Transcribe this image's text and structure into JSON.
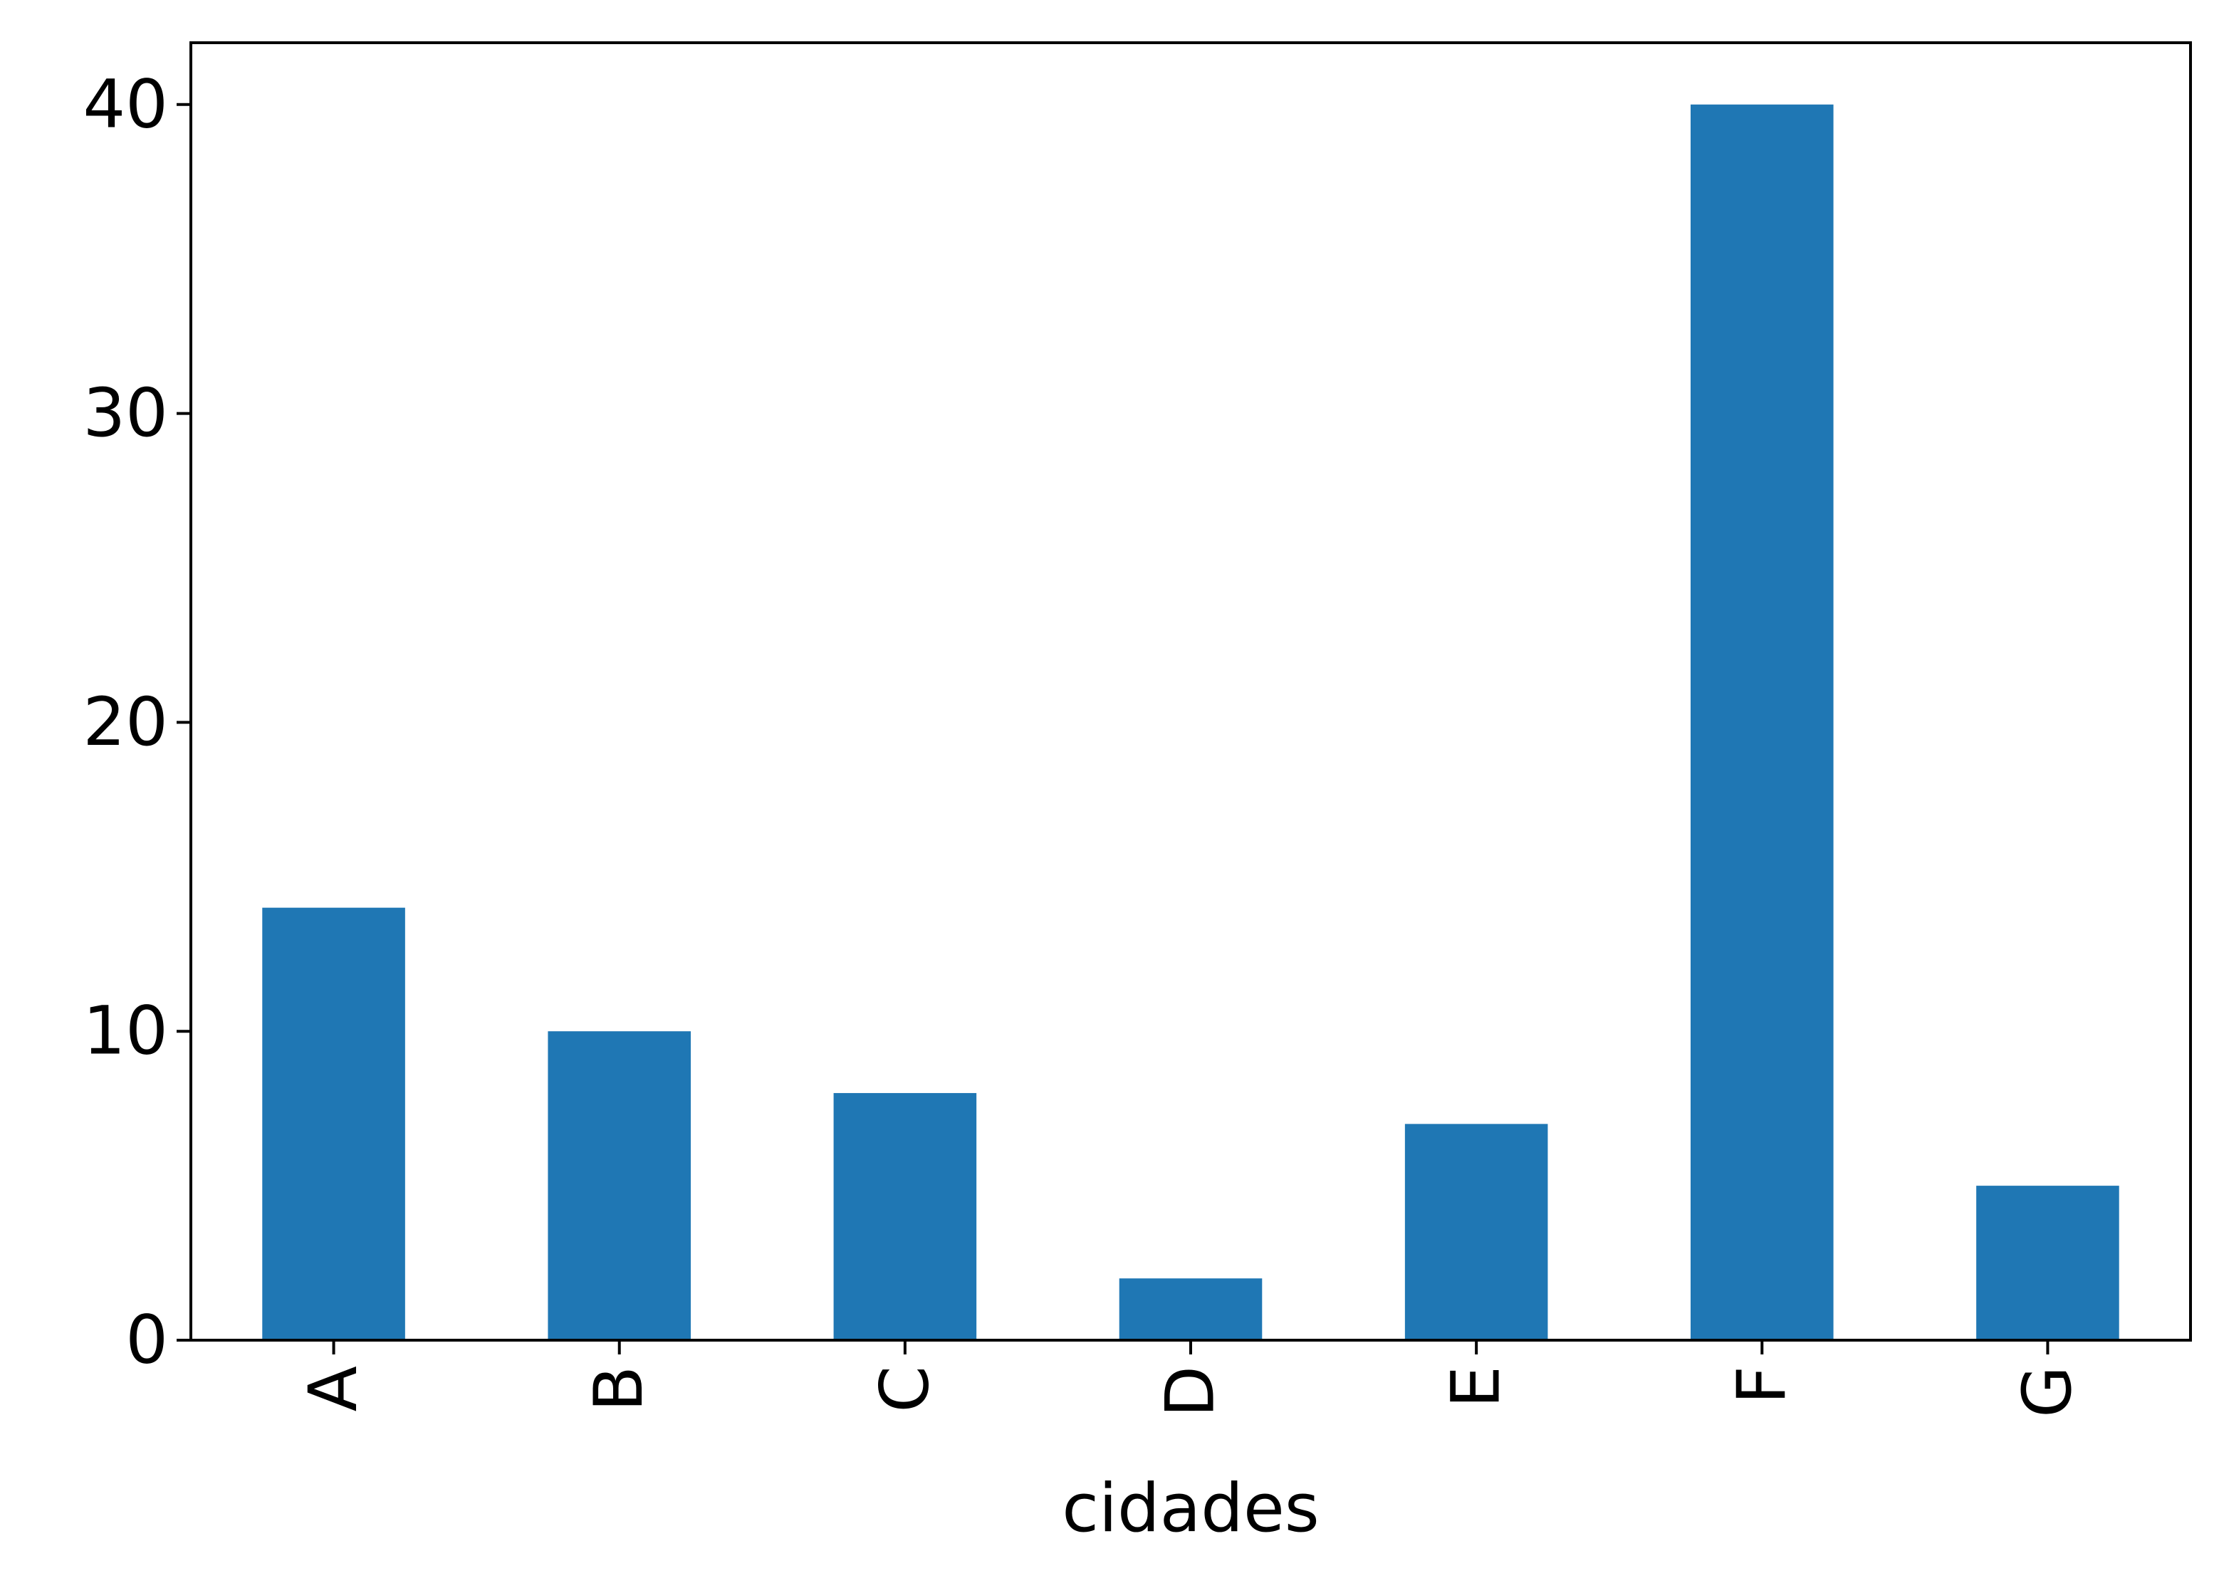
{
  "chart_data": {
    "type": "bar",
    "title": "",
    "xlabel": "cidades",
    "ylabel": "",
    "categories": [
      "A",
      "B",
      "C",
      "D",
      "E",
      "F",
      "G"
    ],
    "values": [
      14,
      10,
      8,
      2,
      7,
      40,
      5
    ],
    "ylim": [
      0,
      42
    ],
    "yticks": [
      0,
      10,
      20,
      30,
      40
    ],
    "grid": false,
    "legend": "none",
    "bar_color": "#1f77b4"
  }
}
